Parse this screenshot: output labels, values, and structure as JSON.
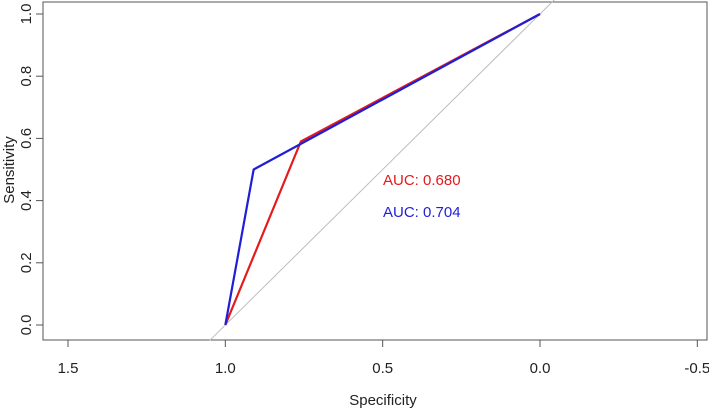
{
  "chart_data": {
    "type": "line",
    "title": "",
    "xlabel": "Specificity",
    "ylabel": "Sensitivity",
    "x_reversed": true,
    "xlim": [
      1.5,
      -0.5
    ],
    "ylim": [
      0.0,
      1.0
    ],
    "x_ticks": [
      1.5,
      1.0,
      0.5,
      0.0,
      -0.5
    ],
    "x_tick_labels": [
      "1.5",
      "1.0",
      "0.5",
      "0.0",
      "-0.5"
    ],
    "y_ticks": [
      0.0,
      0.2,
      0.4,
      0.6,
      0.8,
      1.0
    ],
    "y_tick_labels": [
      "0.0",
      "0.2",
      "0.4",
      "0.6",
      "0.8",
      "1.0"
    ],
    "grid": false,
    "reference_line": {
      "from": [
        1.05,
        -0.05
      ],
      "to": [
        -0.05,
        1.05
      ],
      "color": "#bdbdbd"
    },
    "series": [
      {
        "color": "#e41a1c",
        "label": "AUC: 0.680",
        "points": [
          [
            1.0,
            0.0
          ],
          [
            0.76,
            0.59
          ],
          [
            0.0,
            1.0
          ]
        ]
      },
      {
        "color": "#1f1fd6",
        "label": "AUC: 0.704",
        "points": [
          [
            1.0,
            0.0
          ],
          [
            0.91,
            0.5
          ],
          [
            0.0,
            1.0
          ]
        ]
      }
    ]
  }
}
